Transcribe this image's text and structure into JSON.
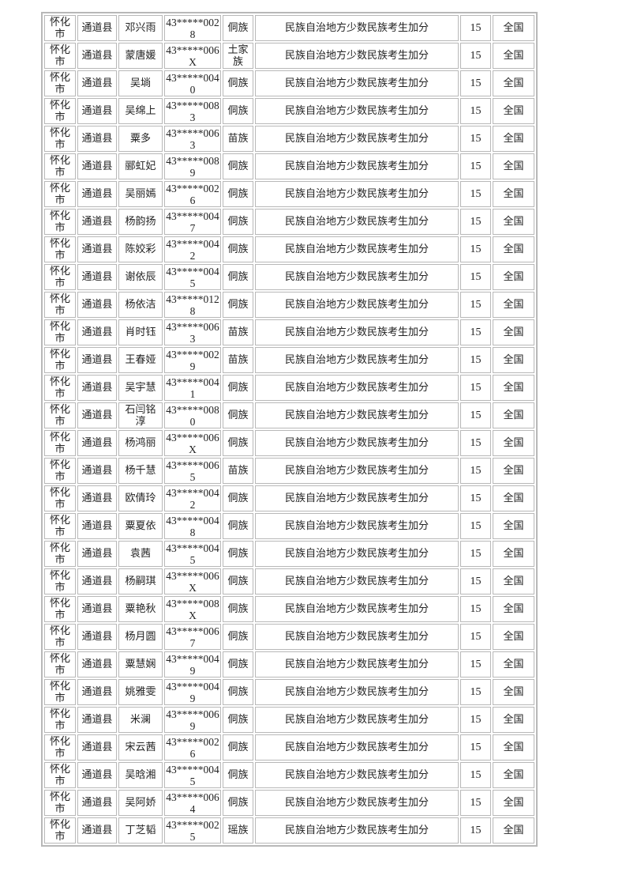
{
  "common": {
    "city": "怀化市",
    "county": "通道县",
    "type": "民族自治地方少数民族考生加分",
    "points": "15",
    "scope": "全国"
  },
  "rows": [
    {
      "name": "邓兴雨",
      "id": "43*****0028",
      "ethnicity": "侗族"
    },
    {
      "name": "蒙唐媛",
      "id": "43*****006X",
      "ethnicity": "土家族"
    },
    {
      "name": "吴埫",
      "id": "43*****0040",
      "ethnicity": "侗族"
    },
    {
      "name": "吴绵上",
      "id": "43*****0083",
      "ethnicity": "侗族"
    },
    {
      "name": "粟多",
      "id": "43*****0063",
      "ethnicity": "苗族"
    },
    {
      "name": "郦虹妃",
      "id": "43*****0089",
      "ethnicity": "侗族"
    },
    {
      "name": "吴丽嫣",
      "id": "43*****0026",
      "ethnicity": "侗族"
    },
    {
      "name": "杨韵扬",
      "id": "43*****0047",
      "ethnicity": "侗族"
    },
    {
      "name": "陈姣彩",
      "id": "43*****0042",
      "ethnicity": "侗族"
    },
    {
      "name": "谢依辰",
      "id": "43*****0045",
      "ethnicity": "侗族"
    },
    {
      "name": "杨依洁",
      "id": "43*****0128",
      "ethnicity": "侗族"
    },
    {
      "name": "肖时钰",
      "id": "43*****0063",
      "ethnicity": "苗族"
    },
    {
      "name": "王春娅",
      "id": "43*****0029",
      "ethnicity": "苗族"
    },
    {
      "name": "吴宇慧",
      "id": "43*****0041",
      "ethnicity": "侗族"
    },
    {
      "name": "石闫铭淳",
      "id": "43*****0080",
      "ethnicity": "侗族"
    },
    {
      "name": "杨鸿丽",
      "id": "43*****006X",
      "ethnicity": "侗族"
    },
    {
      "name": "杨千慧",
      "id": "43*****0065",
      "ethnicity": "苗族"
    },
    {
      "name": "欧倩玲",
      "id": "43*****0042",
      "ethnicity": "侗族"
    },
    {
      "name": "粟夏依",
      "id": "43*****0048",
      "ethnicity": "侗族"
    },
    {
      "name": "袁茜",
      "id": "43*****0045",
      "ethnicity": "侗族"
    },
    {
      "name": "杨嗣琪",
      "id": "43*****006X",
      "ethnicity": "侗族"
    },
    {
      "name": "粟艳秋",
      "id": "43*****008X",
      "ethnicity": "侗族"
    },
    {
      "name": "杨月圆",
      "id": "43*****0067",
      "ethnicity": "侗族"
    },
    {
      "name": "粟慧娴",
      "id": "43*****0049",
      "ethnicity": "侗族"
    },
    {
      "name": "姚雅雯",
      "id": "43*****0049",
      "ethnicity": "侗族"
    },
    {
      "name": "米澜",
      "id": "43*****0069",
      "ethnicity": "侗族"
    },
    {
      "name": "宋云茜",
      "id": "43*****0026",
      "ethnicity": "侗族"
    },
    {
      "name": "吴晗湘",
      "id": "43*****0045",
      "ethnicity": "侗族"
    },
    {
      "name": "吴阿娇",
      "id": "43*****0064",
      "ethnicity": "侗族"
    },
    {
      "name": "丁芝韬",
      "id": "43*****0025",
      "ethnicity": "瑶族"
    }
  ]
}
